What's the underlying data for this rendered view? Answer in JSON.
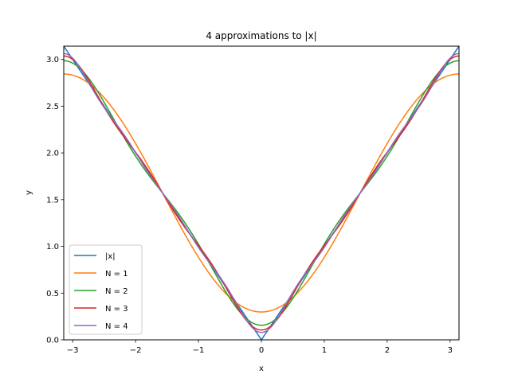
{
  "chart_data": {
    "type": "line",
    "title": "4 approximations to |x|",
    "xlabel": "x",
    "ylabel": "y",
    "xlim": [
      -3.14159,
      3.14159
    ],
    "ylim": [
      0.0,
      3.14159
    ],
    "x_ticks": [
      -3,
      -2,
      -1,
      0,
      1,
      2,
      3
    ],
    "x_tick_labels": [
      "−3",
      "−2",
      "−1",
      "0",
      "1",
      "2",
      "3"
    ],
    "y_ticks": [
      0.0,
      0.5,
      1.0,
      1.5,
      2.0,
      2.5,
      3.0
    ],
    "y_tick_labels": [
      "0.0",
      "0.5",
      "1.0",
      "1.5",
      "2.0",
      "2.5",
      "3.0"
    ],
    "grid": false,
    "legend_position": "lower-left",
    "series": [
      {
        "name": "|x|",
        "color": "#1f77b4",
        "function": "abs"
      },
      {
        "name": "N = 1",
        "color": "#ff7f0e",
        "function": "fourier",
        "order": 1
      },
      {
        "name": "N = 2",
        "color": "#2ca02c",
        "function": "fourier",
        "order": 2
      },
      {
        "name": "N = 3",
        "color": "#d62728",
        "function": "fourier",
        "order": 3
      },
      {
        "name": "N = 4",
        "color": "#9467bd",
        "function": "fourier",
        "order": 4
      }
    ]
  }
}
